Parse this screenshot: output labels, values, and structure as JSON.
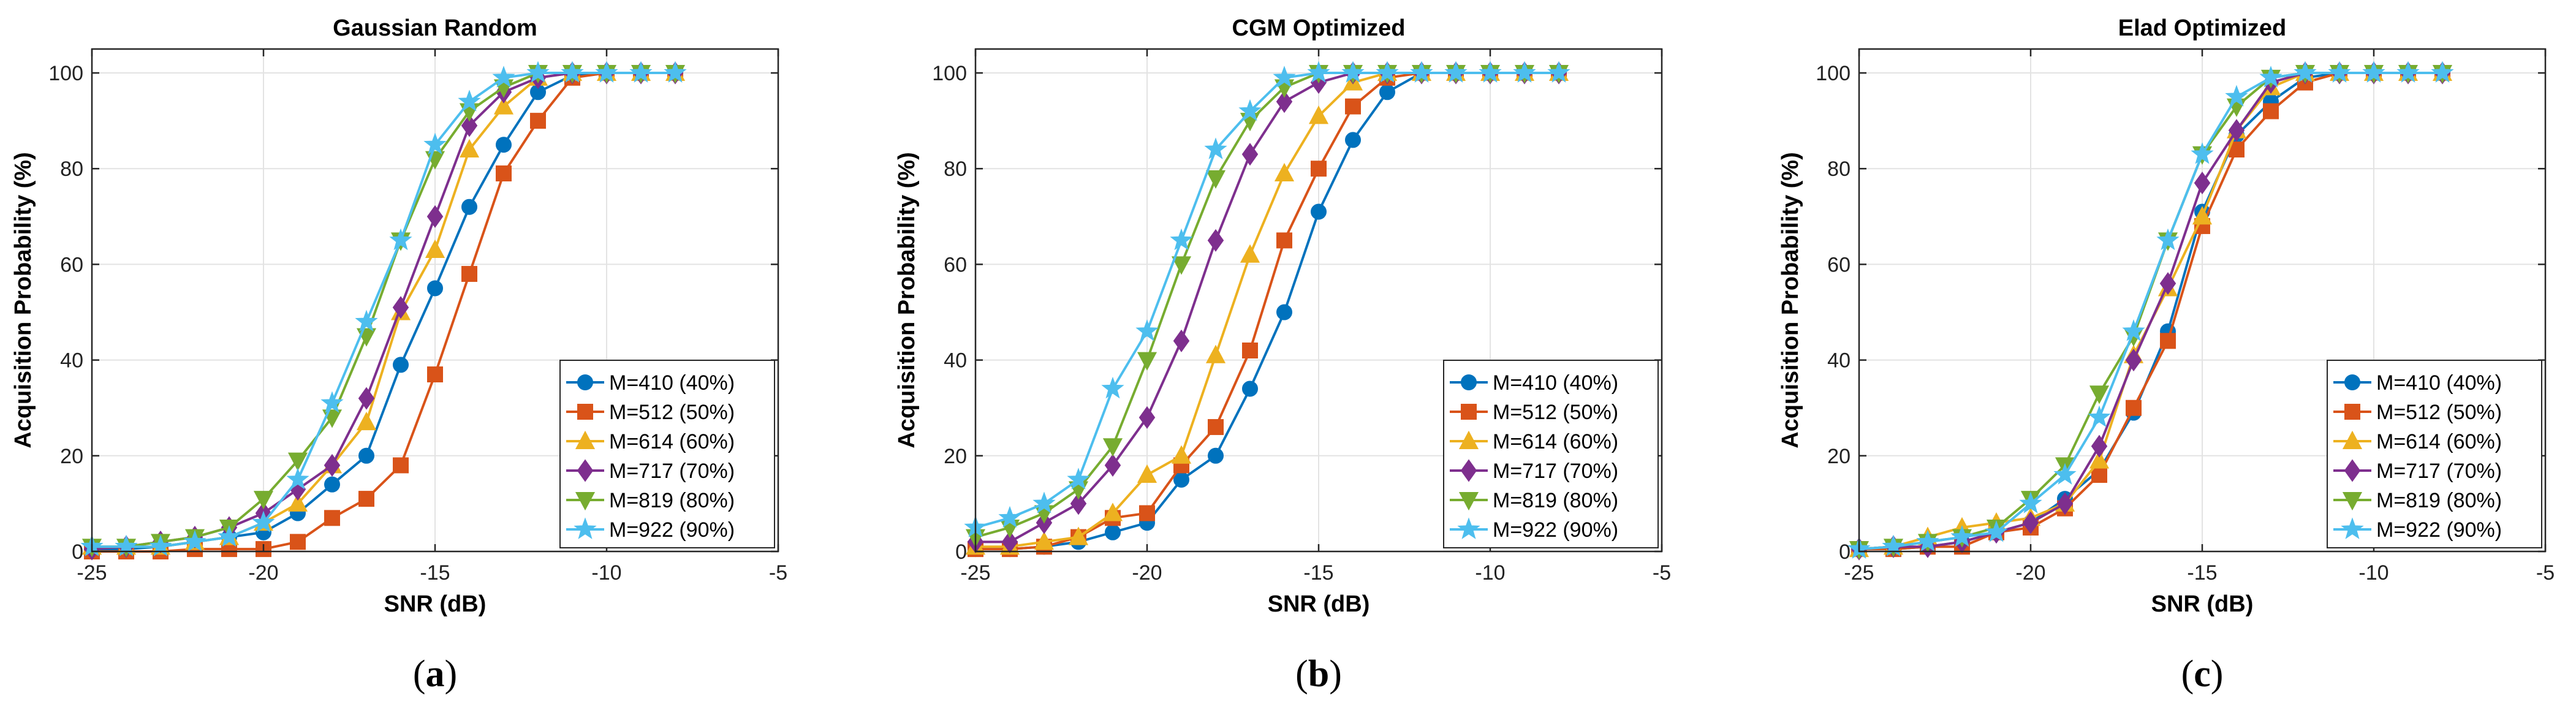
{
  "colors": {
    "M410": "#0072BD",
    "M512": "#D95319",
    "M614": "#EDB120",
    "M717": "#7E2F8E",
    "M819": "#77AC30",
    "M922": "#4DBEEE"
  },
  "chart_data": [
    {
      "type": "line",
      "panel": "a",
      "title": "Gaussian Random",
      "xlabel": "SNR (dB)",
      "ylabel": "Acquisition Probability (%)",
      "xlim": [
        -25,
        -5
      ],
      "ylim": [
        0,
        105
      ],
      "xticks": [
        -25,
        -20,
        -15,
        -10,
        -5
      ],
      "yticks": [
        0,
        20,
        40,
        60,
        80,
        100
      ],
      "grid": true,
      "legend_position": "bottom-right",
      "x": [
        -25,
        -24,
        -23,
        -22,
        -21,
        -20,
        -19,
        -18,
        -17,
        -16,
        -15,
        -14,
        -13,
        -12,
        -11,
        -10,
        -9,
        -8
      ],
      "series": [
        {
          "name": "M=410 (40%)",
          "marker": "circle",
          "color": "#0072BD",
          "values": [
            0.5,
            0.5,
            1,
            2,
            3,
            4,
            8,
            14,
            20,
            39,
            55,
            72,
            85,
            96,
            99.5,
            100,
            100,
            100
          ]
        },
        {
          "name": "M=512 (50%)",
          "marker": "square",
          "color": "#D95319",
          "values": [
            0,
            0,
            0,
            0.5,
            0.5,
            0.5,
            2,
            7,
            11,
            18,
            37,
            58,
            79,
            90,
            99,
            100,
            100,
            100
          ]
        },
        {
          "name": "M=614 (60%)",
          "marker": "triangle-up",
          "color": "#EDB120",
          "values": [
            1,
            1,
            1,
            2,
            3,
            6,
            10,
            18,
            27,
            50,
            63,
            84,
            93,
            99,
            100,
            100,
            100,
            100
          ]
        },
        {
          "name": "M=717 (70%)",
          "marker": "diamond",
          "color": "#7E2F8E",
          "values": [
            0.5,
            1,
            2,
            3,
            5,
            8,
            13,
            18,
            32,
            51,
            70,
            89,
            96,
            99,
            100,
            100,
            100,
            100
          ]
        },
        {
          "name": "M=819 (80%)",
          "marker": "triangle-down",
          "color": "#77AC30",
          "values": [
            1,
            1,
            2,
            3,
            5,
            11,
            19,
            28,
            45,
            65,
            82,
            92,
            97,
            100,
            100,
            100,
            100,
            100
          ]
        },
        {
          "name": "M=922 (90%)",
          "marker": "star",
          "color": "#4DBEEE",
          "values": [
            1,
            1,
            1,
            2,
            3,
            6,
            15,
            31,
            48,
            65,
            85,
            94,
            99,
            100,
            100,
            100,
            100,
            100
          ]
        }
      ]
    },
    {
      "type": "line",
      "panel": "b",
      "title": "CGM Optimized",
      "xlabel": "SNR (dB)",
      "ylabel": "Acquisition Probability (%)",
      "xlim": [
        -25,
        -5
      ],
      "ylim": [
        0,
        105
      ],
      "xticks": [
        -25,
        -20,
        -15,
        -10,
        -5
      ],
      "yticks": [
        0,
        20,
        40,
        60,
        80,
        100
      ],
      "grid": true,
      "legend_position": "bottom-right",
      "x": [
        -25,
        -24,
        -23,
        -22,
        -21,
        -20,
        -19,
        -18,
        -17,
        -16,
        -15,
        -14,
        -13,
        -12,
        -11,
        -10,
        -9,
        -8
      ],
      "series": [
        {
          "name": "M=410 (40%)",
          "marker": "circle",
          "color": "#0072BD",
          "values": [
            0.5,
            0.5,
            1,
            2,
            4,
            6,
            15,
            20,
            34,
            50,
            71,
            86,
            96,
            100,
            100,
            100,
            100,
            100
          ]
        },
        {
          "name": "M=512 (50%)",
          "marker": "square",
          "color": "#D95319",
          "values": [
            0.5,
            0.5,
            1,
            3,
            7,
            8,
            18,
            26,
            42,
            65,
            80,
            93,
            99,
            100,
            100,
            100,
            100,
            100
          ]
        },
        {
          "name": "M=614 (60%)",
          "marker": "triangle-up",
          "color": "#EDB120",
          "values": [
            1,
            1,
            2,
            3,
            8,
            16,
            20,
            41,
            62,
            79,
            91,
            98,
            100,
            100,
            100,
            100,
            100,
            100
          ]
        },
        {
          "name": "M=717 (70%)",
          "marker": "diamond",
          "color": "#7E2F8E",
          "values": [
            2,
            2,
            6,
            10,
            18,
            28,
            44,
            65,
            83,
            94,
            98,
            100,
            100,
            100,
            100,
            100,
            100,
            100
          ]
        },
        {
          "name": "M=819 (80%)",
          "marker": "triangle-down",
          "color": "#77AC30",
          "values": [
            3,
            5,
            8,
            13,
            22,
            40,
            60,
            78,
            90,
            97,
            100,
            100,
            100,
            100,
            100,
            100,
            100,
            100
          ]
        },
        {
          "name": "M=922 (90%)",
          "marker": "star",
          "color": "#4DBEEE",
          "values": [
            5,
            7,
            10,
            15,
            34,
            46,
            65,
            84,
            92,
            99,
            100,
            100,
            100,
            100,
            100,
            100,
            100,
            100
          ]
        }
      ]
    },
    {
      "type": "line",
      "panel": "c",
      "title": "Elad Optimized",
      "xlabel": "SNR (dB)",
      "ylabel": "Acquisition Probability (%)",
      "xlim": [
        -25,
        -5
      ],
      "ylim": [
        0,
        105
      ],
      "xticks": [
        -25,
        -20,
        -15,
        -10,
        -5
      ],
      "yticks": [
        0,
        20,
        40,
        60,
        80,
        100
      ],
      "grid": true,
      "legend_position": "bottom-right",
      "x": [
        -25,
        -24,
        -23,
        -22,
        -21,
        -20,
        -19,
        -18,
        -17,
        -16,
        -15,
        -14,
        -13,
        -12,
        -11,
        -10,
        -9,
        -8
      ],
      "series": [
        {
          "name": "M=410 (40%)",
          "marker": "circle",
          "color": "#0072BD",
          "values": [
            0.5,
            0.5,
            1,
            2,
            4,
            6,
            11,
            17,
            29,
            46,
            71,
            87,
            94,
            99,
            100,
            100,
            100,
            100
          ]
        },
        {
          "name": "M=512 (50%)",
          "marker": "square",
          "color": "#D95319",
          "values": [
            0.5,
            0.5,
            1,
            1,
            4,
            5,
            9,
            16,
            30,
            44,
            68,
            84,
            92,
            98,
            100,
            100,
            100,
            100
          ]
        },
        {
          "name": "M=614 (60%)",
          "marker": "triangle-up",
          "color": "#EDB120",
          "values": [
            0.5,
            1,
            3,
            5,
            6,
            7,
            10,
            19,
            41,
            55,
            70,
            88,
            97,
            100,
            100,
            100,
            100,
            100
          ]
        },
        {
          "name": "M=717 (70%)",
          "marker": "diamond",
          "color": "#7E2F8E",
          "values": [
            0.5,
            1,
            1,
            2,
            4,
            6,
            10,
            22,
            40,
            56,
            77,
            88,
            98,
            100,
            100,
            100,
            100,
            100
          ]
        },
        {
          "name": "M=819 (80%)",
          "marker": "triangle-down",
          "color": "#77AC30",
          "values": [
            0.5,
            1,
            2,
            3,
            5,
            11,
            18,
            33,
            45,
            65,
            83,
            93,
            99,
            100,
            100,
            100,
            100,
            100
          ]
        },
        {
          "name": "M=922 (90%)",
          "marker": "star",
          "color": "#4DBEEE",
          "values": [
            0.5,
            1,
            2,
            3,
            4,
            10,
            16,
            28,
            46,
            65,
            83,
            95,
            99,
            100,
            100,
            100,
            100,
            100
          ]
        }
      ]
    }
  ],
  "panel_labels": [
    "(a)",
    "(b)",
    "(c)"
  ]
}
